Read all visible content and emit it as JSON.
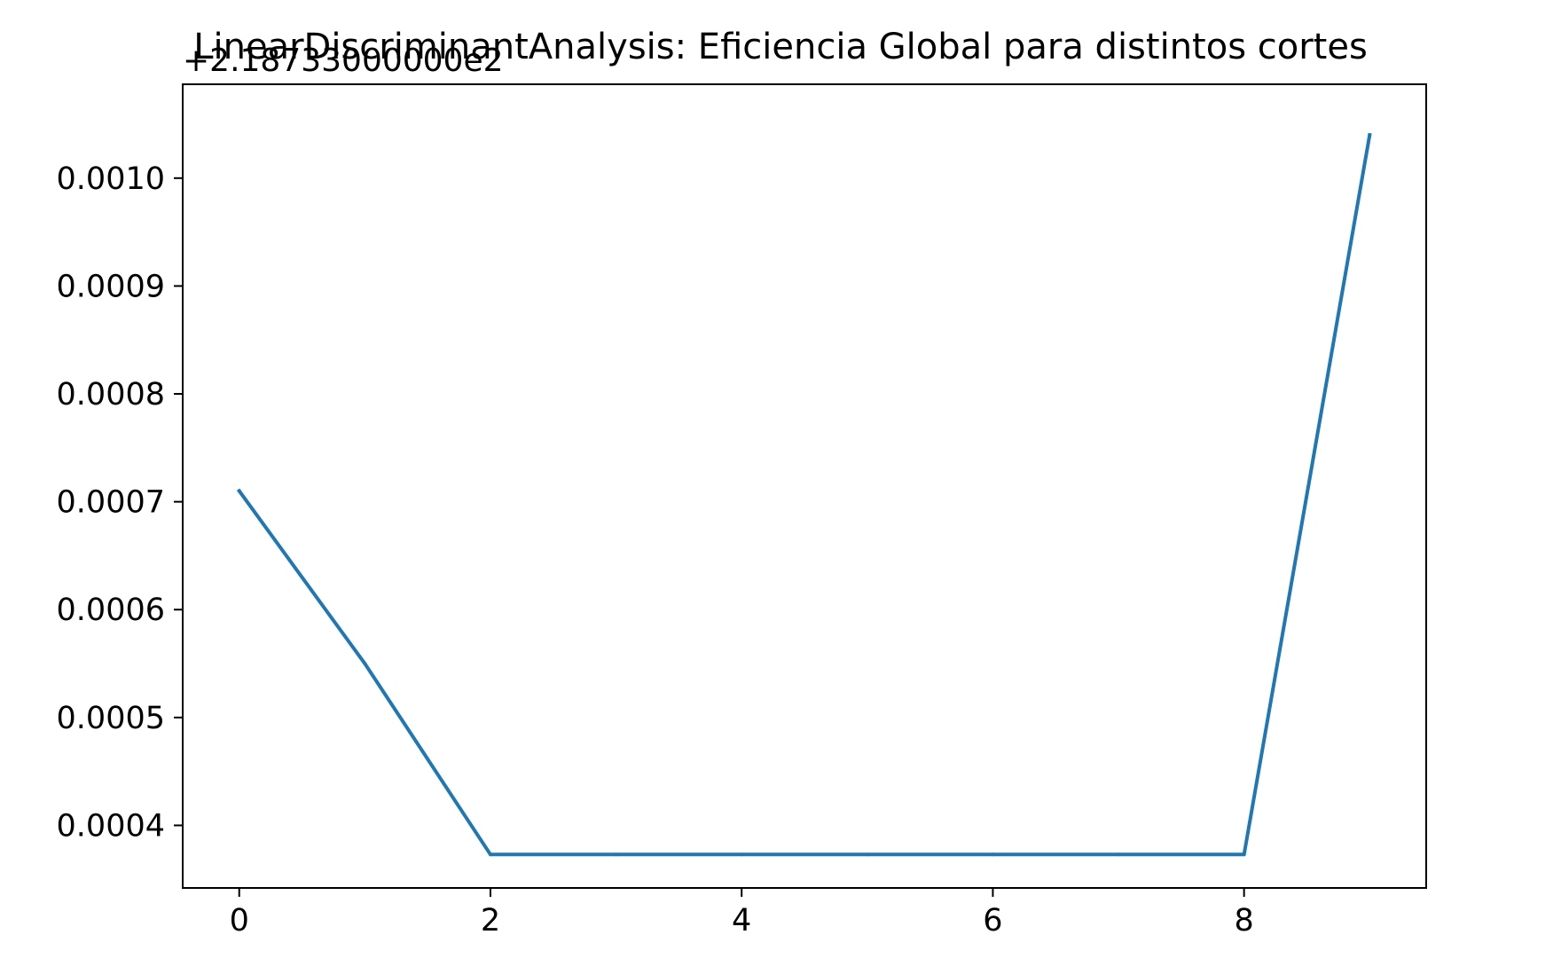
{
  "chart_data": {
    "type": "line",
    "title": "LinearDiscriminantAnalysis: Eficiencia Global para distintos cortes",
    "xlabel": "",
    "ylabel": "",
    "y_offset_label": "+2.18733000000e2",
    "xlim": [
      -0.45,
      9.45
    ],
    "ylim": [
      0.000342,
      0.001087
    ],
    "x_ticks": [
      "0",
      "2",
      "4",
      "6",
      "8"
    ],
    "y_ticks": [
      "0.0004",
      "0.0005",
      "0.0006",
      "0.0007",
      "0.0008",
      "0.0009",
      "0.0010"
    ],
    "grid": false,
    "series": [
      {
        "color": "#1f77b4",
        "x": [
          0,
          1,
          2,
          3,
          4,
          5,
          6,
          7,
          8,
          9
        ],
        "y": [
          0.00071,
          0.00055,
          0.000373,
          0.000373,
          0.000373,
          0.000373,
          0.000373,
          0.000373,
          0.000373,
          0.00104
        ]
      }
    ]
  }
}
